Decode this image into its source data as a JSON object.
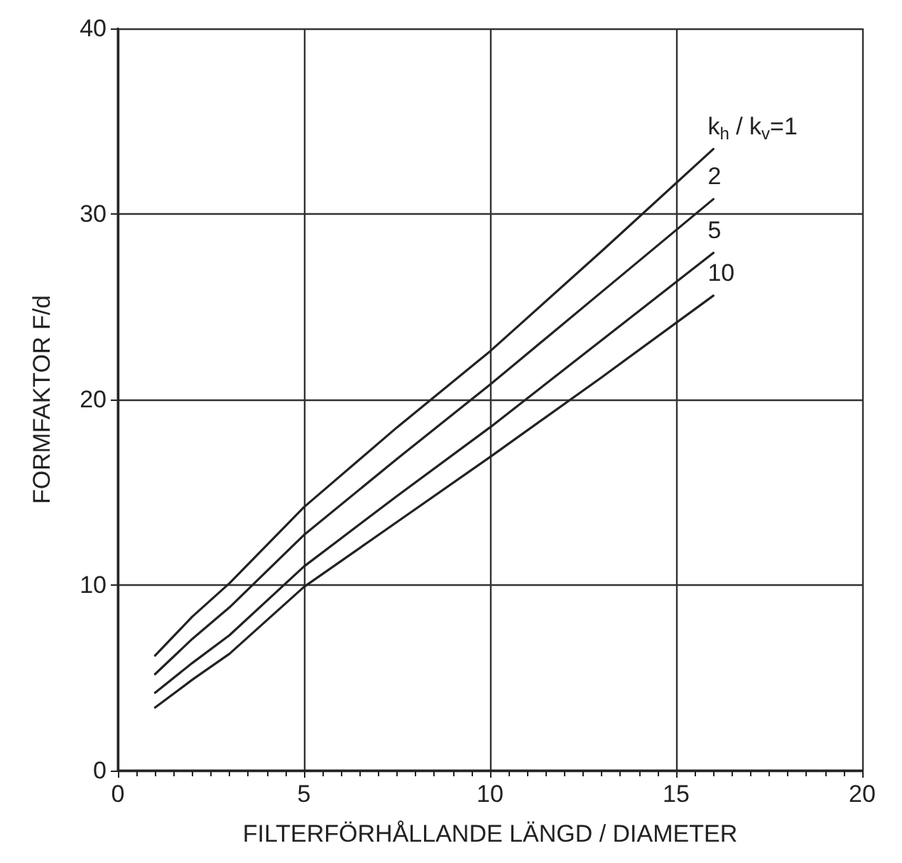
{
  "chart_data": {
    "type": "line",
    "xlabel": "FILTERFÖRHÅLLANDE LÄNGD / DIAMETER",
    "ylabel": "FORMFAKTOR F/d",
    "x": [
      1,
      2,
      3,
      5,
      7.5,
      10,
      13,
      16
    ],
    "series": [
      {
        "name": "k$_{h}$ / k$_{v}$=1",
        "color": "#222222",
        "values": [
          6.2,
          8.3,
          10.1,
          14.2,
          18.5,
          22.6,
          28.0,
          33.5
        ]
      },
      {
        "name": "2",
        "color": "#222222",
        "values": [
          5.2,
          7.1,
          8.8,
          12.7,
          16.8,
          20.8,
          25.8,
          30.8
        ]
      },
      {
        "name": "5",
        "color": "#222222",
        "values": [
          4.2,
          5.8,
          7.3,
          11.0,
          14.8,
          18.5,
          23.2,
          27.9
        ]
      },
      {
        "name": "10",
        "color": "#222222",
        "values": [
          3.4,
          4.9,
          6.3,
          9.9,
          13.4,
          16.9,
          21.2,
          25.6
        ]
      }
    ],
    "xlim": [
      0,
      20
    ],
    "xticks": [
      0,
      5,
      10,
      15,
      20
    ],
    "ylim": [
      0,
      40
    ],
    "yticks": [
      0,
      10,
      20,
      30,
      40
    ],
    "grid": true,
    "legend": false,
    "marker": "none",
    "line_style": "solid"
  }
}
